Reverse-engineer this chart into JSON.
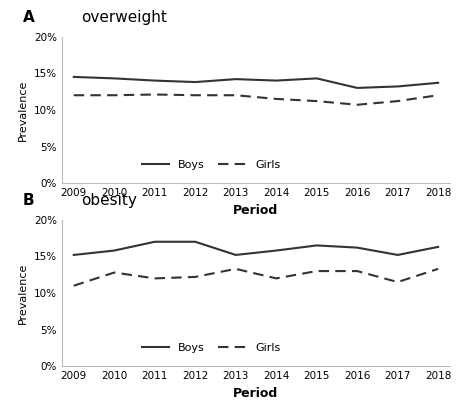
{
  "years": [
    2009,
    2010,
    2011,
    2012,
    2013,
    2014,
    2015,
    2016,
    2017,
    2018
  ],
  "overweight_boys": [
    14.5,
    14.3,
    14.0,
    13.8,
    14.2,
    14.0,
    14.3,
    13.0,
    13.2,
    13.7
  ],
  "overweight_girls": [
    12.0,
    12.0,
    12.1,
    12.0,
    12.0,
    11.5,
    11.2,
    10.7,
    11.2,
    12.0
  ],
  "obesity_boys": [
    15.2,
    15.8,
    17.0,
    17.0,
    15.2,
    15.8,
    16.5,
    16.2,
    15.2,
    16.3
  ],
  "obesity_girls": [
    11.0,
    12.8,
    12.0,
    12.2,
    13.3,
    12.0,
    13.0,
    13.0,
    11.5,
    13.3
  ],
  "panel_A_label": "A",
  "panel_B_label": "B",
  "title_A": "overweight",
  "title_B": "obesity",
  "ylabel": "Prevalence",
  "xlabel": "Period",
  "ylim": [
    0,
    0.2
  ],
  "yticks": [
    0,
    0.05,
    0.1,
    0.15,
    0.2
  ],
  "line_color": "#333333",
  "boys_label": "Boys",
  "girls_label": "Girls"
}
